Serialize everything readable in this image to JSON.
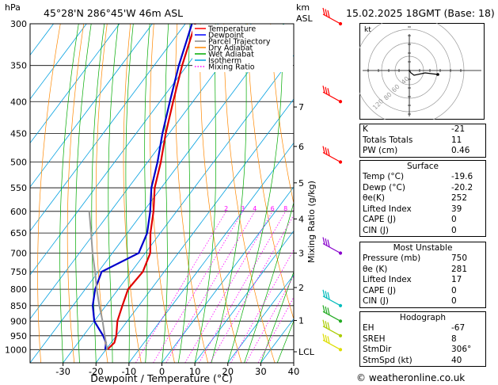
{
  "header": {
    "hpa_label": "hPa",
    "location": "45°28'N  286°45'W  46m  ASL",
    "km_label": "km",
    "asl_label": "ASL",
    "datetime": "15.02.2025  18GMT  (Base: 18)"
  },
  "chart_data": {
    "type": "line",
    "subtype": "skew-T log-P diagram",
    "xlabel": "Dewpoint / Temperature (°C)",
    "ylabel_left": "hPa",
    "ylabel_right": "Mixing Ratio (g/kg)",
    "xlim": [
      -40,
      40
    ],
    "ylim": [
      1050,
      300
    ],
    "y_scale": "log",
    "x_ticks": [
      "-30",
      "-20",
      "-10",
      "0",
      "10",
      "20",
      "30",
      "40"
    ],
    "pressure_ticks": [
      "300",
      "350",
      "400",
      "450",
      "500",
      "550",
      "600",
      "650",
      "700",
      "750",
      "800",
      "850",
      "900",
      "950",
      "1000"
    ],
    "height_ticks": [
      {
        "p": 408,
        "label": "7"
      },
      {
        "p": 472,
        "label": "6"
      },
      {
        "p": 540,
        "label": "5"
      },
      {
        "p": 617,
        "label": "4"
      },
      {
        "p": 700,
        "label": "3"
      },
      {
        "p": 795,
        "label": "2"
      },
      {
        "p": 898,
        "label": "1"
      },
      {
        "p": 1008,
        "label": "LCL"
      }
    ],
    "mixing_ratio_labels": [
      "2",
      "3",
      "4",
      "6",
      "8",
      "10",
      "15",
      "20",
      "25"
    ],
    "mixing_ratio_values": [
      2,
      3,
      4,
      6,
      8,
      10,
      15,
      20,
      25
    ],
    "legend": [
      "Temperature",
      "Dewpoint",
      "Parcel Trajectory",
      "Dry Adiabat",
      "Wet Adiabat",
      "Isotherm",
      "Mixing Ratio"
    ],
    "legend_colors": [
      "#ff0000",
      "#0000ff",
      "#888888",
      "#ff8800",
      "#00aa00",
      "#00a0e0",
      "#ff00ff"
    ],
    "series": [
      {
        "name": "Temperature",
        "color": "#e00000",
        "points": [
          [
            1000,
            -19.6
          ],
          [
            975,
            -19.0
          ],
          [
            950,
            -20.0
          ],
          [
            900,
            -23.0
          ],
          [
            850,
            -25.0
          ],
          [
            800,
            -27.0
          ],
          [
            750,
            -26.5
          ],
          [
            700,
            -28.5
          ],
          [
            650,
            -33.0
          ],
          [
            600,
            -37.0
          ],
          [
            550,
            -42.0
          ],
          [
            500,
            -46.0
          ],
          [
            450,
            -51.0
          ],
          [
            400,
            -56.0
          ],
          [
            350,
            -61.5
          ],
          [
            300,
            -67.0
          ]
        ]
      },
      {
        "name": "Dewpoint",
        "color": "#0000cc",
        "points": [
          [
            1000,
            -20.2
          ],
          [
            975,
            -21.5
          ],
          [
            950,
            -24.0
          ],
          [
            900,
            -30.0
          ],
          [
            850,
            -34.0
          ],
          [
            800,
            -37.0
          ],
          [
            750,
            -39.0
          ],
          [
            700,
            -32.0
          ],
          [
            650,
            -34.0
          ],
          [
            600,
            -38.0
          ],
          [
            550,
            -43.0
          ],
          [
            500,
            -47.0
          ],
          [
            450,
            -52.0
          ],
          [
            400,
            -57.0
          ],
          [
            350,
            -62.5
          ],
          [
            300,
            -68.0
          ]
        ]
      },
      {
        "name": "Parcel Trajectory",
        "color": "#999999",
        "points": [
          [
            1000,
            -19.6
          ],
          [
            950,
            -23.5
          ],
          [
            900,
            -27.5
          ],
          [
            850,
            -32.0
          ],
          [
            800,
            -36.5
          ],
          [
            750,
            -41.0
          ],
          [
            700,
            -46.0
          ],
          [
            650,
            -51.0
          ],
          [
            600,
            -56.5
          ]
        ]
      }
    ],
    "wind_barbs": [
      {
        "p": 300,
        "color": "#ff0000"
      },
      {
        "p": 400,
        "color": "#ff0000"
      },
      {
        "p": 500,
        "color": "#ff0000"
      },
      {
        "p": 700,
        "color": "#8800cc"
      },
      {
        "p": 850,
        "color": "#00bbbb"
      },
      {
        "p": 900,
        "color": "#22aa22"
      },
      {
        "p": 950,
        "color": "#aacc00"
      },
      {
        "p": 1000,
        "color": "#dddd00"
      }
    ]
  },
  "hodograph": {
    "unit_label": "kt",
    "ring_labels": [
      "40",
      "60",
      "80",
      "120"
    ]
  },
  "indices": {
    "rows": [
      {
        "k": "K",
        "v": "-21"
      },
      {
        "k": "Totals Totals",
        "v": "11"
      },
      {
        "k": "PW (cm)",
        "v": "0.46"
      }
    ]
  },
  "surface": {
    "title": "Surface",
    "rows": [
      {
        "k": "Temp (°C)",
        "v": "-19.6"
      },
      {
        "k": "Dewp (°C)",
        "v": "-20.2"
      },
      {
        "k": "θe(K)",
        "v": "252"
      },
      {
        "k": "Lifted Index",
        "v": "39"
      },
      {
        "k": "CAPE (J)",
        "v": "0"
      },
      {
        "k": "CIN (J)",
        "v": "0"
      }
    ]
  },
  "most_unstable": {
    "title": "Most Unstable",
    "rows": [
      {
        "k": "Pressure (mb)",
        "v": "750"
      },
      {
        "k": "θe (K)",
        "v": "281"
      },
      {
        "k": "Lifted Index",
        "v": "17"
      },
      {
        "k": "CAPE (J)",
        "v": "0"
      },
      {
        "k": "CIN (J)",
        "v": "0"
      }
    ]
  },
  "hodograph_table": {
    "title": "Hodograph",
    "rows": [
      {
        "k": "EH",
        "v": "-67"
      },
      {
        "k": "SREH",
        "v": "8"
      },
      {
        "k": "StmDir",
        "v": "306°"
      },
      {
        "k": "StmSpd (kt)",
        "v": "40"
      }
    ]
  },
  "footer": {
    "copyright": "© weatheronline.co.uk"
  }
}
